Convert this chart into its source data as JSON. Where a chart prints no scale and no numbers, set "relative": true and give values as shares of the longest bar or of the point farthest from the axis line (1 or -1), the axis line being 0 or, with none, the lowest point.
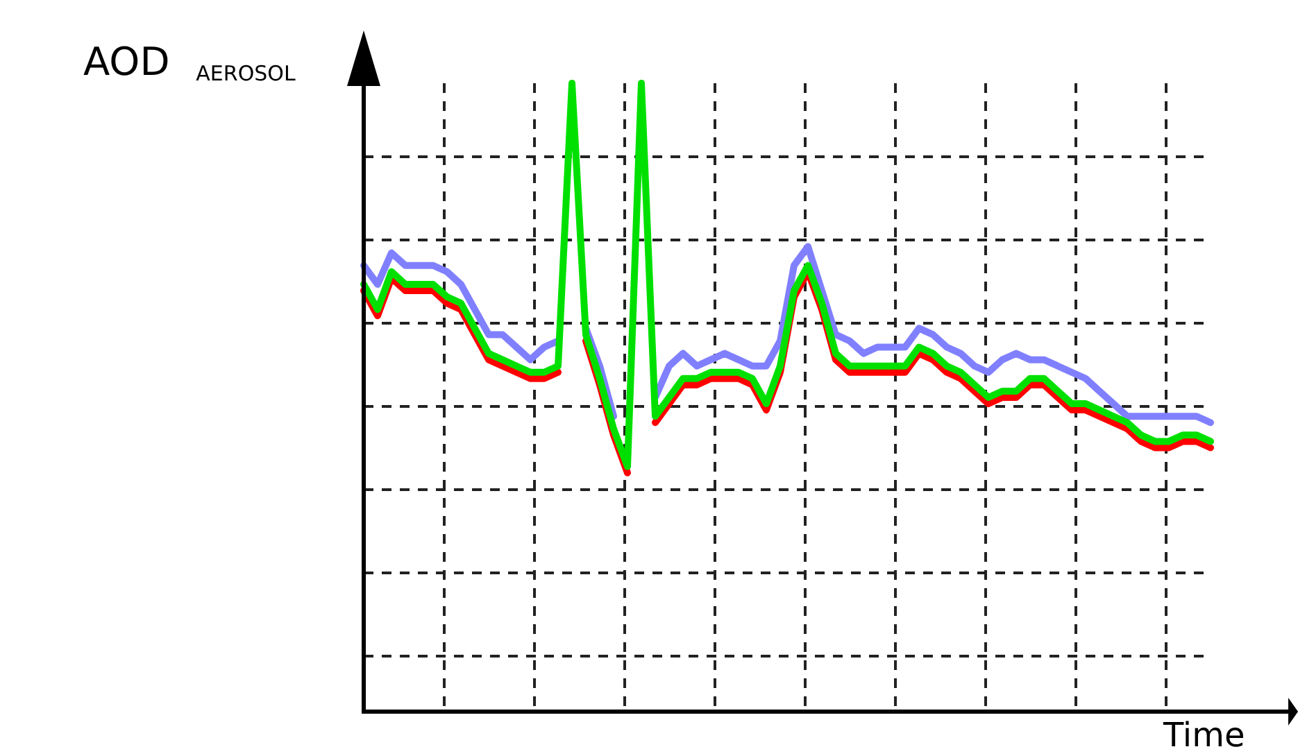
{
  "chart_data": {
    "type": "line",
    "relative": true,
    "xlabel": "Time",
    "ylabel": "AOD $_{AEROSOL}$",
    "grid": true,
    "marker": "none",
    "line_style": "solid",
    "categories": [
      null,
      null,
      null,
      null,
      null,
      null,
      null,
      null,
      null,
      null,
      null,
      null,
      null,
      null,
      null,
      null,
      null,
      null,
      null,
      null,
      null,
      null,
      null,
      null,
      null,
      null,
      null,
      null,
      null,
      null,
      null,
      null,
      null,
      null,
      null,
      null,
      null,
      null,
      null,
      null,
      null,
      null,
      null,
      null,
      null,
      null,
      null,
      null,
      null,
      null,
      null,
      null,
      null,
      null,
      null,
      null,
      null,
      null,
      null,
      null,
      null,
      null
    ],
    "series": [
      {
        "color": "#8080ff",
        "values": [
          0.71,
          0.68,
          0.73,
          0.71,
          0.71,
          0.71,
          0.7,
          0.68,
          0.64,
          0.6,
          0.6,
          0.58,
          0.56,
          0.58,
          0.59,
          null,
          0.61,
          0.55,
          0.47,
          null,
          null,
          0.5,
          0.55,
          0.57,
          0.55,
          0.56,
          0.57,
          0.56,
          0.55,
          0.55,
          0.59,
          0.71,
          0.74,
          0.67,
          0.6,
          0.59,
          0.57,
          0.58,
          0.58,
          0.58,
          0.61,
          0.6,
          0.58,
          0.57,
          0.55,
          0.54,
          0.56,
          0.57,
          0.56,
          0.56,
          0.55,
          0.54,
          0.53,
          0.51,
          0.49,
          0.47,
          0.47,
          0.47,
          0.47,
          0.47,
          0.47,
          0.46
        ]
      },
      {
        "color": "#ff0000",
        "values": [
          0.67,
          0.63,
          0.69,
          0.67,
          0.67,
          0.67,
          0.65,
          0.64,
          0.6,
          0.56,
          0.55,
          0.54,
          0.53,
          0.53,
          0.54,
          null,
          0.59,
          0.52,
          0.44,
          0.38,
          null,
          0.46,
          0.49,
          0.52,
          0.52,
          0.53,
          0.53,
          0.53,
          0.52,
          0.48,
          0.54,
          0.66,
          0.7,
          0.64,
          0.56,
          0.54,
          0.54,
          0.54,
          0.54,
          0.54,
          0.57,
          0.56,
          0.54,
          0.53,
          0.51,
          0.49,
          0.5,
          0.5,
          0.52,
          0.52,
          0.5,
          0.48,
          0.48,
          0.47,
          0.46,
          0.45,
          0.43,
          0.42,
          0.42,
          0.43,
          0.43,
          0.42
        ]
      },
      {
        "color": "#00e000",
        "values": [
          0.68,
          0.64,
          0.7,
          0.68,
          0.68,
          0.68,
          0.66,
          0.65,
          0.61,
          0.57,
          0.56,
          0.55,
          0.54,
          0.54,
          0.55,
          1,
          0.6,
          0.53,
          0.45,
          0.39,
          1,
          0.47,
          0.5,
          0.53,
          0.53,
          0.54,
          0.54,
          0.54,
          0.53,
          0.49,
          0.55,
          0.67,
          0.71,
          0.65,
          0.57,
          0.55,
          0.55,
          0.55,
          0.55,
          0.55,
          0.58,
          0.57,
          0.55,
          0.54,
          0.52,
          0.5,
          0.51,
          0.51,
          0.53,
          0.53,
          0.51,
          0.49,
          0.49,
          0.48,
          0.47,
          0.46,
          0.44,
          0.43,
          0.43,
          0.44,
          0.44,
          0.43
        ]
      }
    ]
  }
}
